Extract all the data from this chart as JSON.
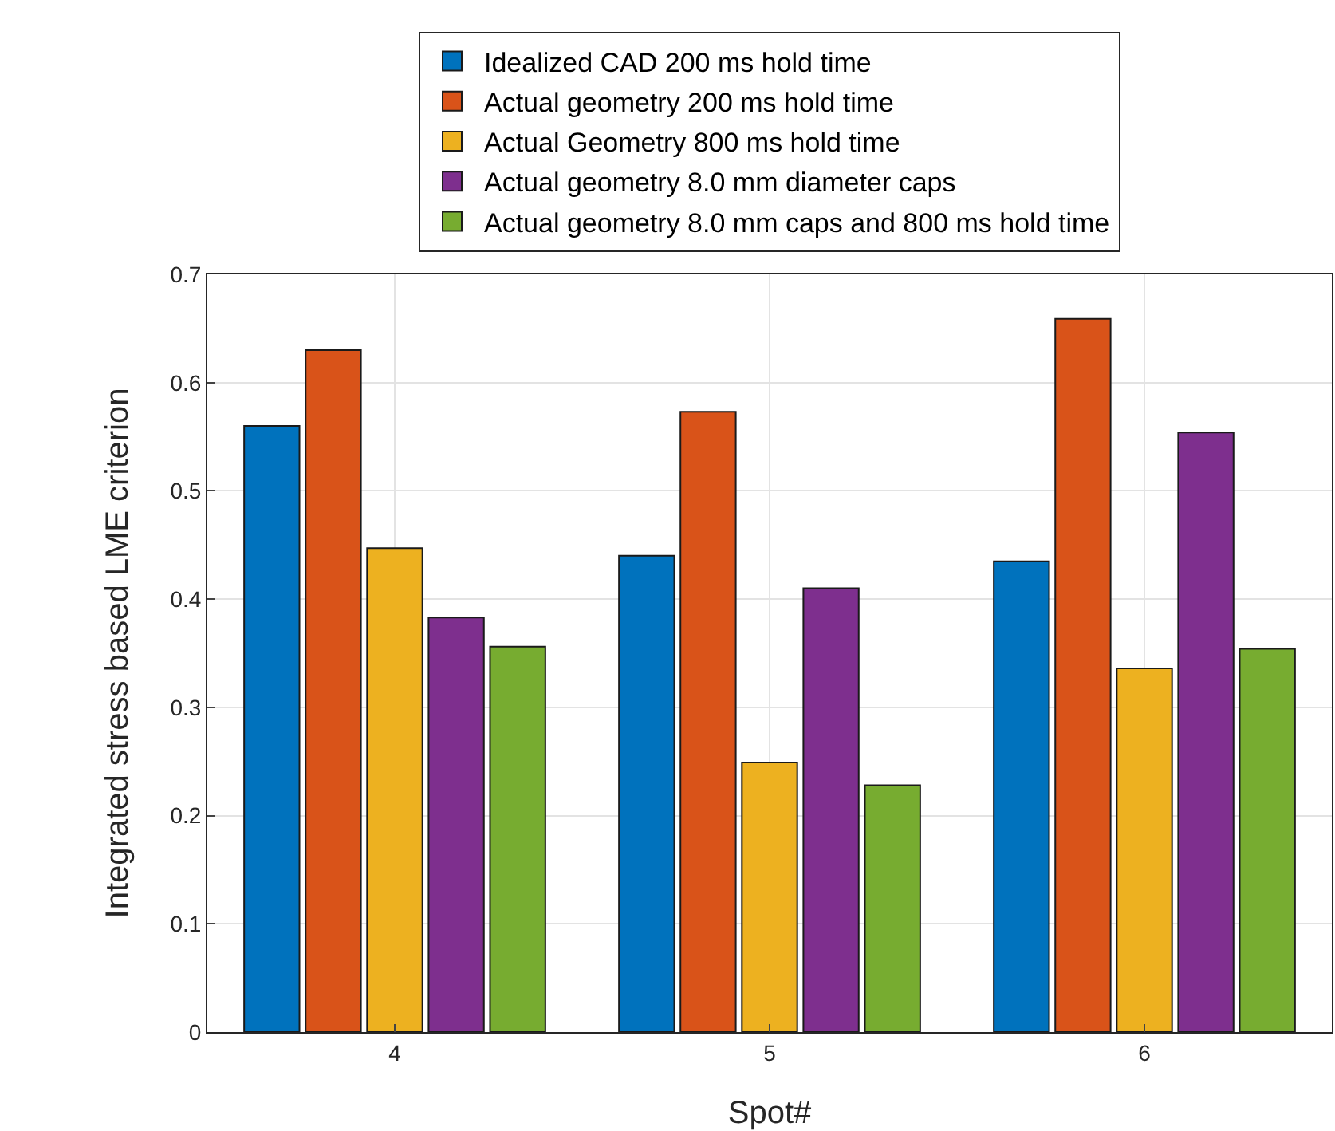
{
  "chart_data": {
    "type": "bar",
    "xlabel": "Spot#",
    "ylabel": "Integrated stress based LME criterion",
    "categories": [
      "4",
      "5",
      "6"
    ],
    "series": [
      {
        "name": "Idealized CAD 200 ms hold time",
        "color": "#0072bd",
        "values": [
          0.56,
          0.44,
          0.435
        ]
      },
      {
        "name": "Actual geometry 200 ms hold time",
        "color": "#d95319",
        "values": [
          0.63,
          0.573,
          0.659
        ]
      },
      {
        "name": "Actual Geometry 800 ms hold time",
        "color": "#edb120",
        "values": [
          0.447,
          0.249,
          0.336
        ]
      },
      {
        "name": "Actual geometry 8.0 mm diameter caps",
        "color": "#7e2f8e",
        "values": [
          0.383,
          0.41,
          0.554
        ]
      },
      {
        "name": "Actual geometry 8.0 mm caps and 800 ms hold time",
        "color": "#77ac30",
        "values": [
          0.356,
          0.228,
          0.354
        ]
      }
    ],
    "ylim": [
      0,
      0.7
    ],
    "yticks": [
      0,
      0.1,
      0.2,
      0.3,
      0.4,
      0.5,
      0.6,
      0.7
    ],
    "grid": true,
    "legend": "top"
  }
}
